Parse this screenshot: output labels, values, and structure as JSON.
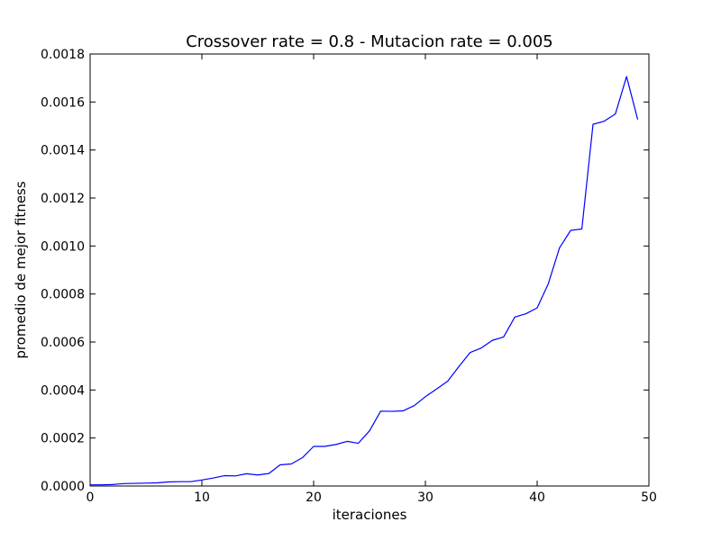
{
  "chart_data": {
    "type": "line",
    "title": "Crossover rate = 0.8 - Mutacion rate = 0.005",
    "xlabel": "iteraciones",
    "ylabel": "promedio de mejor fitness",
    "xlim": [
      0,
      50
    ],
    "ylim": [
      0,
      0.0018
    ],
    "grid": false,
    "x_ticks": [
      "0",
      "10",
      "20",
      "30",
      "40",
      "50"
    ],
    "y_ticks": [
      "0.0000",
      "0.0002",
      "0.0004",
      "0.0006",
      "0.0008",
      "0.0010",
      "0.0012",
      "0.0014",
      "0.0016",
      "0.0018"
    ],
    "series": [
      {
        "color": "#0000ff",
        "x": [
          0,
          1,
          2,
          3,
          4,
          5,
          6,
          7,
          8,
          9,
          10,
          11,
          12,
          13,
          14,
          15,
          16,
          17,
          18,
          19,
          20,
          21,
          22,
          23,
          24,
          25,
          26,
          27,
          28,
          29,
          30,
          31,
          32,
          33,
          34,
          35,
          36,
          37,
          38,
          39,
          40,
          41,
          42,
          43,
          44,
          45,
          46,
          47,
          48,
          49
        ],
        "values": [
          5e-06,
          5e-06,
          6e-06,
          1e-05,
          1.1e-05,
          1.2e-05,
          1.3e-05,
          1.7e-05,
          1.8e-05,
          1.8e-05,
          2.5e-05,
          3.3e-05,
          4.3e-05,
          4.2e-05,
          5.1e-05,
          4.6e-05,
          5.2e-05,
          8.8e-05,
          9.2e-05,
          0.000118,
          0.000165,
          0.000165,
          0.000173,
          0.000186,
          0.000178,
          0.00023,
          0.000312,
          0.000311,
          0.000313,
          0.000335,
          0.000372,
          0.000404,
          0.000437,
          0.000498,
          0.000556,
          0.000575,
          0.000607,
          0.000621,
          0.000704,
          0.000718,
          0.000742,
          0.000843,
          0.000992,
          0.001065,
          0.001071,
          0.001507,
          0.00152,
          0.00155,
          0.001706,
          0.001527
        ]
      }
    ]
  }
}
